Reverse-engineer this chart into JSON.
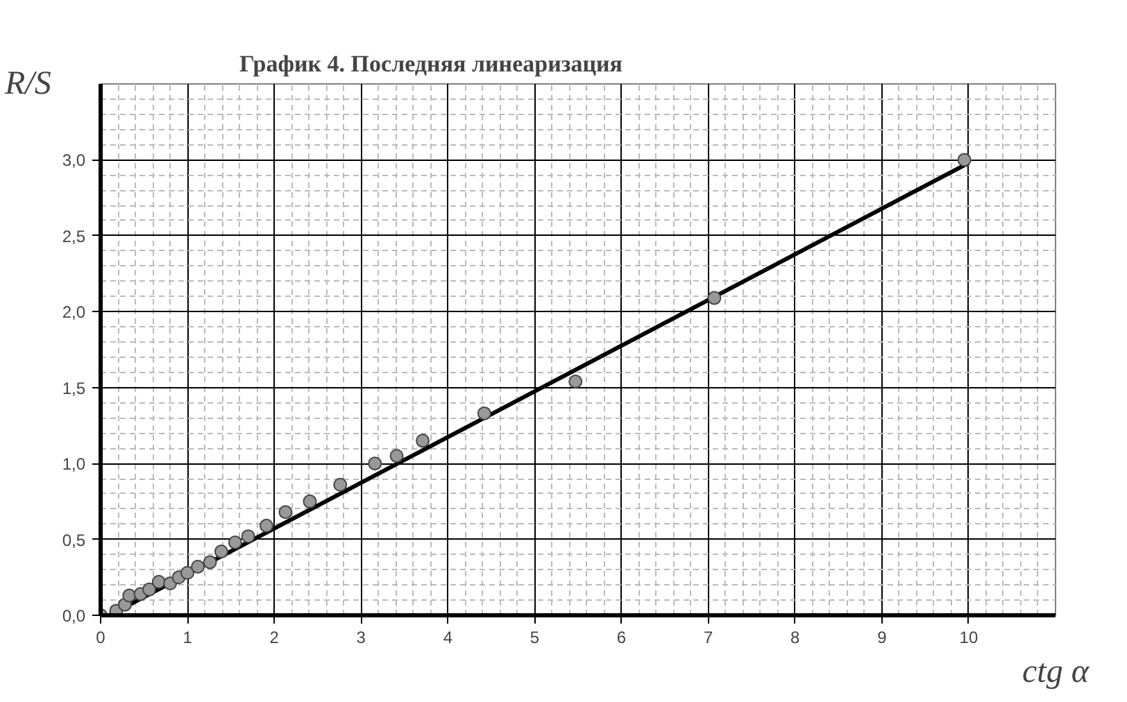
{
  "chart_data": {
    "type": "scatter",
    "title": "График 4. Последняя линеаризация",
    "xlabel": "ctg α",
    "ylabel": "R/S",
    "xlim": [
      0,
      11
    ],
    "ylim": [
      0,
      3.5
    ],
    "xticks": [
      0,
      1,
      2,
      3,
      4,
      5,
      6,
      7,
      8,
      9,
      10
    ],
    "yticks": [
      {
        "value": 0,
        "label": "0,0"
      },
      {
        "value": 0.5,
        "label": "0,5"
      },
      {
        "value": 1,
        "label": "1,0"
      },
      {
        "value": 1.5,
        "label": "1,5"
      },
      {
        "value": 2,
        "label": "2,0"
      },
      {
        "value": 2.5,
        "label": "2,5"
      },
      {
        "value": 3,
        "label": "3,0"
      }
    ],
    "grid": true,
    "marker": "circle",
    "series": [
      {
        "color": "#999999",
        "x": [
          0,
          0.18,
          0.28,
          0.33,
          0.46,
          0.56,
          0.67,
          0.8,
          0.9,
          1.0,
          1.12,
          1.26,
          1.39,
          1.55,
          1.7,
          1.91,
          2.13,
          2.41,
          2.76,
          3.16,
          3.41,
          3.71,
          4.42,
          5.47,
          7.07,
          9.95
        ],
        "values": [
          0,
          0.03,
          0.07,
          0.13,
          0.14,
          0.17,
          0.22,
          0.21,
          0.25,
          0.28,
          0.32,
          0.35,
          0.42,
          0.48,
          0.52,
          0.59,
          0.68,
          0.75,
          0.86,
          1.0,
          1.05,
          1.15,
          1.33,
          1.54,
          2.09,
          3.0
        ]
      },
      {
        "type": "line",
        "color": "#000000",
        "line_style": "solid",
        "marker": "none",
        "x": [
          0.1,
          10
        ],
        "values": [
          0,
          2.98
        ]
      }
    ]
  }
}
